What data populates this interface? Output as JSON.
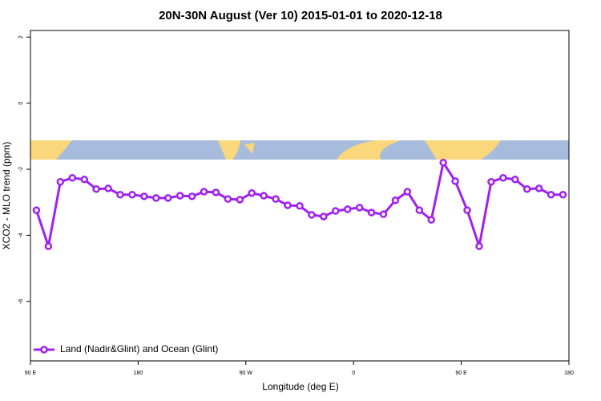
{
  "chart_data": {
    "type": "line",
    "title": "20N-30N August (Ver 10)   2015-01-01 to 2020-12-18",
    "x_label": "Longitude (deg E)",
    "y_label": "XCO2 - MLO trend (ppm)",
    "x": [
      95,
      105,
      115,
      125,
      135,
      145,
      155,
      165,
      175,
      185,
      195,
      205,
      215,
      225,
      235,
      245,
      255,
      265,
      275,
      285,
      295,
      305,
      315,
      325,
      335,
      345,
      355,
      365,
      375,
      385,
      395,
      405,
      415,
      425,
      435,
      445,
      455,
      465,
      475,
      485,
      495,
      505,
      515,
      525,
      535
    ],
    "series": [
      {
        "name": "Land (Nadir&Glint) and Ocean (Glint)",
        "color": "#a020f0",
        "values": [
          -3.24,
          -4.33,
          -2.38,
          -2.26,
          -2.31,
          -2.6,
          -2.58,
          -2.77,
          -2.77,
          -2.82,
          -2.87,
          -2.87,
          -2.8,
          -2.82,
          -2.68,
          -2.7,
          -2.9,
          -2.92,
          -2.72,
          -2.8,
          -2.9,
          -3.09,
          -3.11,
          -3.38,
          -3.43,
          -3.26,
          -3.21,
          -3.16,
          -3.31,
          -3.36,
          -2.94,
          -2.68,
          -3.24,
          -3.53,
          -1.8,
          -2.36,
          -3.24,
          -4.33,
          -2.38,
          -2.26,
          -2.31,
          -2.6,
          -2.58,
          -2.77,
          -2.77
        ]
      }
    ],
    "xlim": [
      90,
      540
    ],
    "xticks": [
      {
        "value": 90,
        "label": "90 E"
      },
      180,
      {
        "value": 270,
        "label": "90 W"
      },
      {
        "value": 360,
        "label": "0"
      },
      {
        "value": 450,
        "label": "90 E"
      },
      {
        "value": 540,
        "label": "180"
      }
    ],
    "ylim": [
      -7.8,
      2.2
    ],
    "yticks": [
      2,
      0,
      -2,
      -4,
      -6
    ],
    "legend": "bottom-left"
  }
}
